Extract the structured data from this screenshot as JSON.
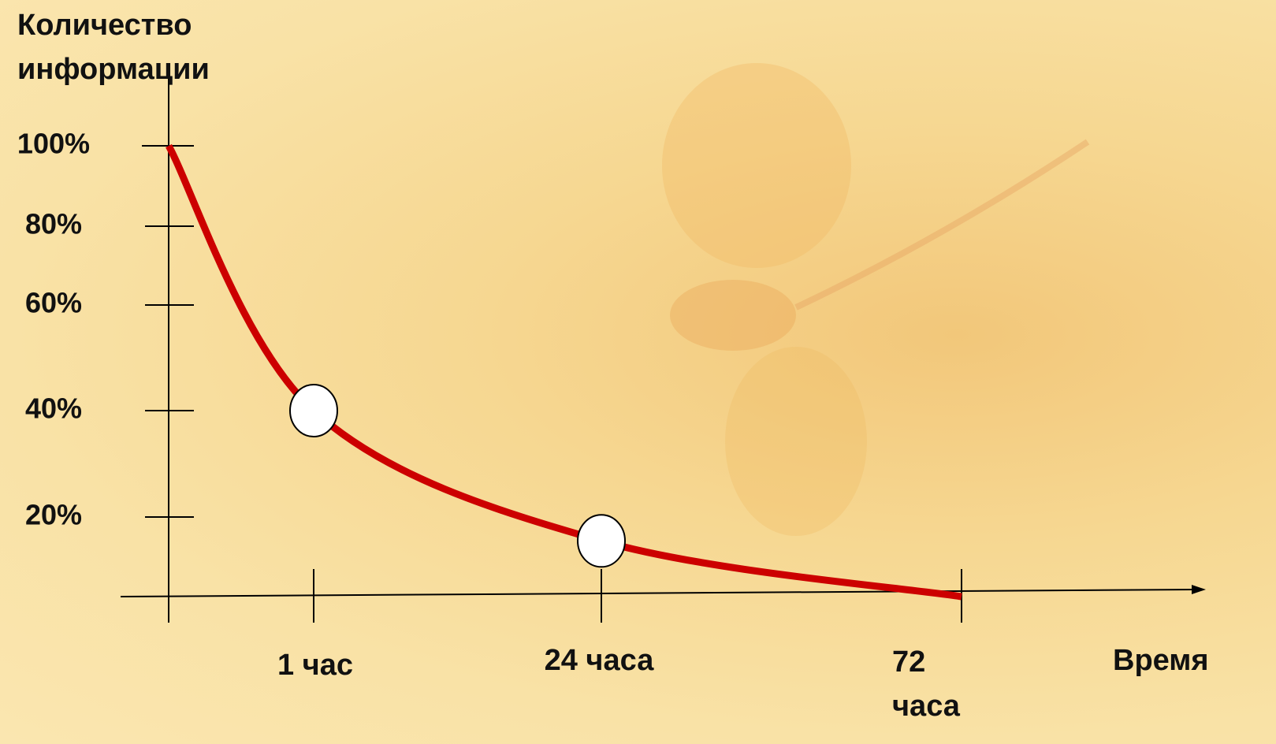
{
  "chart_data": {
    "type": "line",
    "y_axis_label": "Количество информации",
    "x_axis_label": "Время",
    "categories": [
      null,
      "1 час",
      "24 часа",
      "72 часа"
    ],
    "series": [
      {
        "name": null,
        "color": "#cc0000",
        "values": [
          100,
          40,
          14,
          0
        ]
      }
    ],
    "ylim": [
      0,
      100
    ],
    "yticks": [
      {
        "value": 20,
        "label": "20%"
      },
      {
        "value": 40,
        "label": "40%"
      },
      {
        "value": 60,
        "label": "60%"
      },
      {
        "value": 80,
        "label": "80%"
      },
      {
        "value": 100,
        "label": "100%"
      }
    ]
  }
}
